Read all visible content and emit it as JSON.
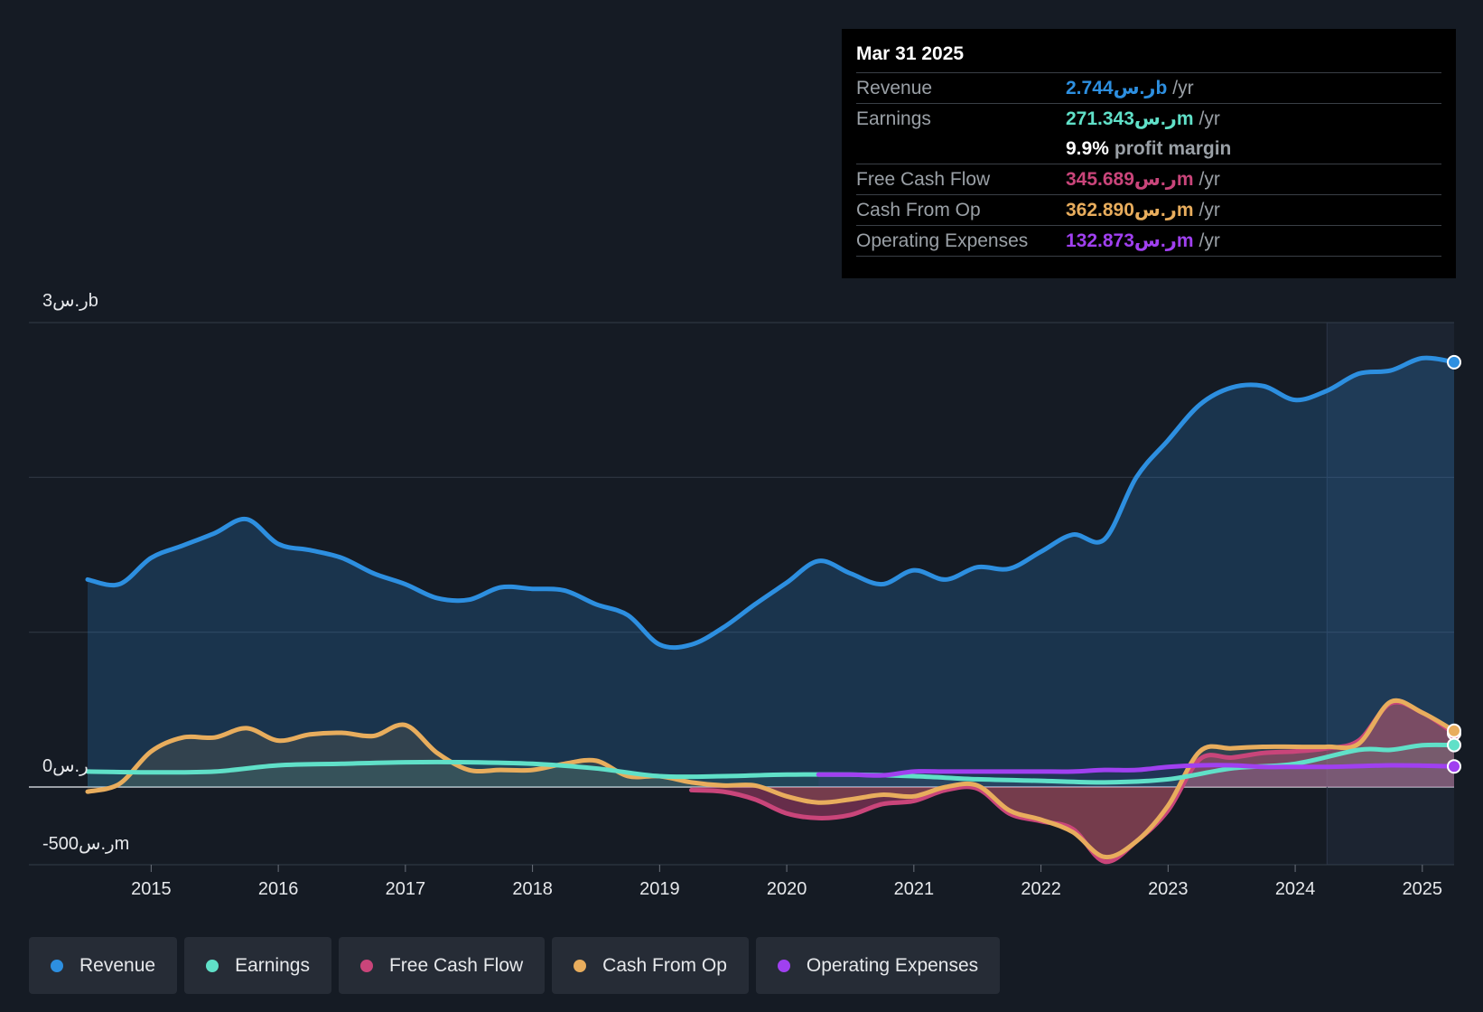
{
  "chart_data": {
    "type": "area",
    "title": "",
    "y_unit_labels": {
      "top": "3ر.سb",
      "zero": "0ر.س",
      "bottom": "-500ر.سm"
    },
    "ylim": [
      -500,
      3000
    ],
    "xlim": [
      2014.5,
      2025.25
    ],
    "x_ticks": [
      "2015",
      "2016",
      "2017",
      "2018",
      "2019",
      "2020",
      "2021",
      "2022",
      "2023",
      "2024",
      "2025"
    ],
    "x_tick_values": [
      2015,
      2016,
      2017,
      2018,
      2019,
      2020,
      2021,
      2022,
      2023,
      2024,
      2025
    ],
    "gridlines_y": [
      3000,
      2000,
      1000,
      0,
      -500
    ],
    "forecast_start": 2024.25,
    "series": [
      {
        "name": "Revenue",
        "color": "#2d8fe0",
        "x": [
          2014.5,
          2014.75,
          2015,
          2015.25,
          2015.5,
          2015.75,
          2016,
          2016.25,
          2016.5,
          2016.75,
          2017,
          2017.25,
          2017.5,
          2017.75,
          2018,
          2018.25,
          2018.5,
          2018.75,
          2019,
          2019.25,
          2019.5,
          2019.75,
          2020,
          2020.25,
          2020.5,
          2020.75,
          2021,
          2021.25,
          2021.5,
          2021.75,
          2022,
          2022.25,
          2022.5,
          2022.75,
          2023,
          2023.25,
          2023.5,
          2023.75,
          2024,
          2024.25,
          2024.5,
          2024.75,
          2025,
          2025.25
        ],
        "values": [
          1340,
          1310,
          1480,
          1560,
          1640,
          1730,
          1570,
          1530,
          1480,
          1380,
          1310,
          1220,
          1210,
          1290,
          1280,
          1270,
          1180,
          1110,
          920,
          920,
          1030,
          1180,
          1320,
          1460,
          1380,
          1310,
          1400,
          1340,
          1420,
          1410,
          1520,
          1630,
          1600,
          2000,
          2240,
          2470,
          2580,
          2590,
          2500,
          2560,
          2670,
          2690,
          2770,
          2744
        ]
      },
      {
        "name": "Earnings",
        "color": "#60e0c8",
        "x": [
          2014.5,
          2015,
          2015.5,
          2016,
          2016.5,
          2017,
          2017.5,
          2018,
          2018.5,
          2019,
          2019.5,
          2020,
          2020.5,
          2021,
          2021.5,
          2022,
          2022.5,
          2023,
          2023.5,
          2024,
          2024.5,
          2024.75,
          2025,
          2025.25
        ],
        "values": [
          100,
          95,
          100,
          140,
          150,
          160,
          160,
          150,
          120,
          70,
          70,
          80,
          80,
          70,
          50,
          40,
          30,
          50,
          120,
          150,
          240,
          240,
          270,
          271
        ]
      },
      {
        "name": "Free Cash Flow",
        "color": "#c9457a",
        "x": [
          2019.25,
          2019.5,
          2019.75,
          2020,
          2020.25,
          2020.5,
          2020.75,
          2021,
          2021.25,
          2021.5,
          2021.75,
          2022,
          2022.25,
          2022.5,
          2022.75,
          2023,
          2023.25,
          2023.5,
          2023.75,
          2024,
          2024.25,
          2024.5,
          2024.75,
          2025,
          2025.25
        ],
        "values": [
          -20,
          -30,
          -80,
          -170,
          -200,
          -180,
          -110,
          -90,
          -20,
          -10,
          -170,
          -220,
          -270,
          -480,
          -350,
          -150,
          180,
          190,
          220,
          230,
          250,
          300,
          540,
          480,
          346
        ]
      },
      {
        "name": "Cash From Op",
        "color": "#e8ad5d",
        "x": [
          2014.5,
          2014.75,
          2015,
          2015.25,
          2015.5,
          2015.75,
          2016,
          2016.25,
          2016.5,
          2016.75,
          2017,
          2017.25,
          2017.5,
          2017.75,
          2018,
          2018.25,
          2018.5,
          2018.75,
          2019,
          2019.25,
          2019.5,
          2019.75,
          2020,
          2020.25,
          2020.5,
          2020.75,
          2021,
          2021.25,
          2021.5,
          2021.75,
          2022,
          2022.25,
          2022.5,
          2022.75,
          2023,
          2023.25,
          2023.5,
          2023.75,
          2024,
          2024.25,
          2024.5,
          2024.75,
          2025,
          2025.25
        ],
        "values": [
          -30,
          20,
          230,
          320,
          320,
          380,
          300,
          340,
          350,
          330,
          400,
          220,
          110,
          110,
          110,
          150,
          170,
          70,
          70,
          30,
          10,
          10,
          -60,
          -100,
          -80,
          -50,
          -60,
          0,
          10,
          -150,
          -210,
          -290,
          -450,
          -350,
          -120,
          230,
          250,
          260,
          260,
          260,
          280,
          550,
          480,
          363
        ]
      },
      {
        "name": "Operating Expenses",
        "color": "#a040f0",
        "x": [
          2020.25,
          2020.5,
          2020.75,
          2021,
          2021.25,
          2021.5,
          2021.75,
          2022,
          2022.25,
          2022.5,
          2022.75,
          2023,
          2023.25,
          2023.5,
          2023.75,
          2024,
          2024.25,
          2024.5,
          2024.75,
          2025,
          2025.25
        ],
        "values": [
          80,
          80,
          75,
          100,
          100,
          100,
          100,
          100,
          100,
          110,
          110,
          130,
          140,
          140,
          130,
          130,
          130,
          135,
          140,
          138,
          133
        ]
      }
    ]
  },
  "tooltip": {
    "date": "Mar 31 2025",
    "rows": [
      {
        "label": "Revenue",
        "value": "2.744ر.سb",
        "unit": "/yr",
        "color": "#2d8fe0"
      },
      {
        "label": "Earnings",
        "value": "271.343ر.سm",
        "unit": "/yr",
        "color": "#60e0c8"
      },
      {
        "label": "",
        "value": "9.9%",
        "unit": "profit margin",
        "color": "#ffffff"
      },
      {
        "label": "Free Cash Flow",
        "value": "345.689ر.سm",
        "unit": "/yr",
        "color": "#c9457a"
      },
      {
        "label": "Cash From Op",
        "value": "362.890ر.سm",
        "unit": "/yr",
        "color": "#e8ad5d"
      },
      {
        "label": "Operating Expenses",
        "value": "132.873ر.سm",
        "unit": "/yr",
        "color": "#a040f0"
      }
    ]
  },
  "legend": [
    {
      "label": "Revenue",
      "color": "#2d8fe0"
    },
    {
      "label": "Earnings",
      "color": "#60e0c8"
    },
    {
      "label": "Free Cash Flow",
      "color": "#c9457a"
    },
    {
      "label": "Cash From Op",
      "color": "#e8ad5d"
    },
    {
      "label": "Operating Expenses",
      "color": "#a040f0"
    }
  ]
}
